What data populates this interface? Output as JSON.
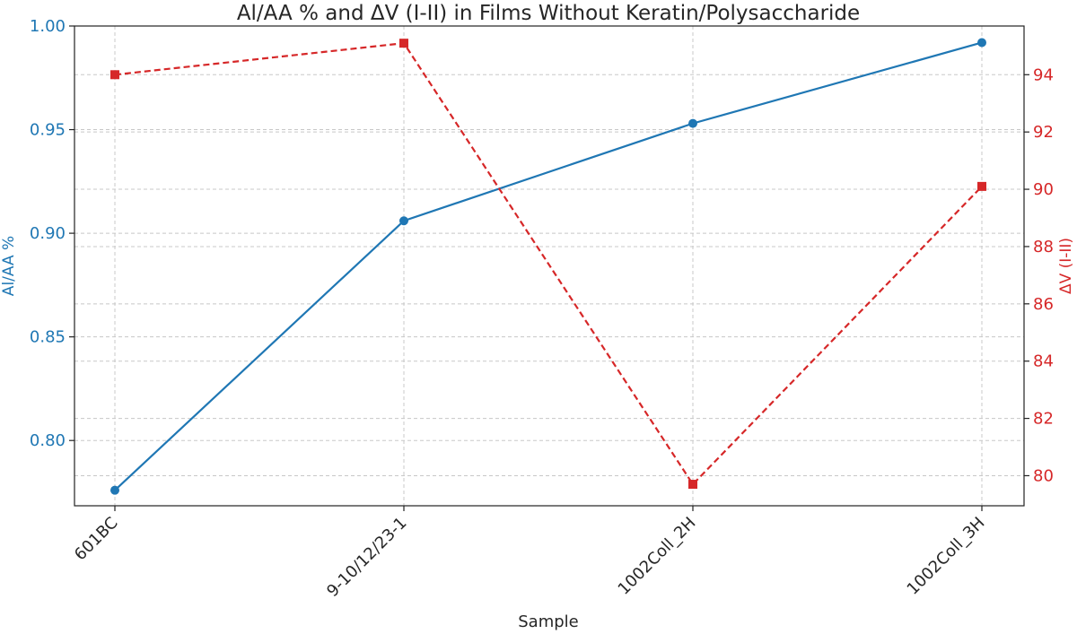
{
  "chart_data": {
    "type": "line",
    "title": "Al/AA % and ΔV (I-II) in Films Without Keratin/Polysaccharide",
    "xlabel": "Sample",
    "categories": [
      "601BC",
      "9-10/12/23-1",
      "1002Coll_2H",
      "1002Coll_3H"
    ],
    "grid": true,
    "series": [
      {
        "name": "Al/AA %",
        "axis": "left",
        "color": "#1f77b4",
        "line_style": "solid",
        "marker": "circle",
        "values": [
          0.776,
          0.906,
          0.953,
          0.992
        ]
      },
      {
        "name": "ΔV (I-II)",
        "axis": "right",
        "color": "#d62728",
        "line_style": "dashed",
        "marker": "square",
        "values": [
          94.0,
          95.1,
          79.7,
          90.1
        ]
      }
    ],
    "left_axis": {
      "label": "Al/AA %",
      "color": "#1f77b4",
      "range": [
        0.7685,
        1.0
      ],
      "ticks": [
        "0.80",
        "0.85",
        "0.90",
        "0.95",
        "1.00"
      ]
    },
    "right_axis": {
      "label": "ΔV (I-II)",
      "color": "#d62728",
      "range": [
        78.95,
        95.7
      ],
      "ticks": [
        "80",
        "82",
        "84",
        "86",
        "88",
        "90",
        "92",
        "94"
      ]
    }
  }
}
